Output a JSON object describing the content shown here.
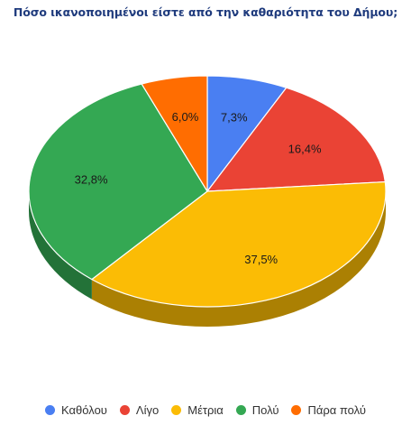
{
  "chart_data": {
    "type": "pie",
    "title": "Πόσο ικανοποιημένοι είστε από την καθαριότητα του Δήμου;",
    "slices": [
      {
        "name": "Καθόλου",
        "value": 7.3,
        "label": "7,3%",
        "color": "#4a7ff2"
      },
      {
        "name": "Λίγο",
        "value": 16.4,
        "label": "16,4%",
        "color": "#ea4335"
      },
      {
        "name": "Μέτρια",
        "value": 37.5,
        "label": "37,5%",
        "color": "#fbbc05"
      },
      {
        "name": "Πολύ",
        "value": 32.8,
        "label": "32,8%",
        "color": "#34a853"
      },
      {
        "name": "Πάρα πολύ",
        "value": 6.0,
        "label": "6,0%",
        "color": "#ff6d01"
      }
    ],
    "legend_position": "bottom",
    "style": "3d"
  }
}
